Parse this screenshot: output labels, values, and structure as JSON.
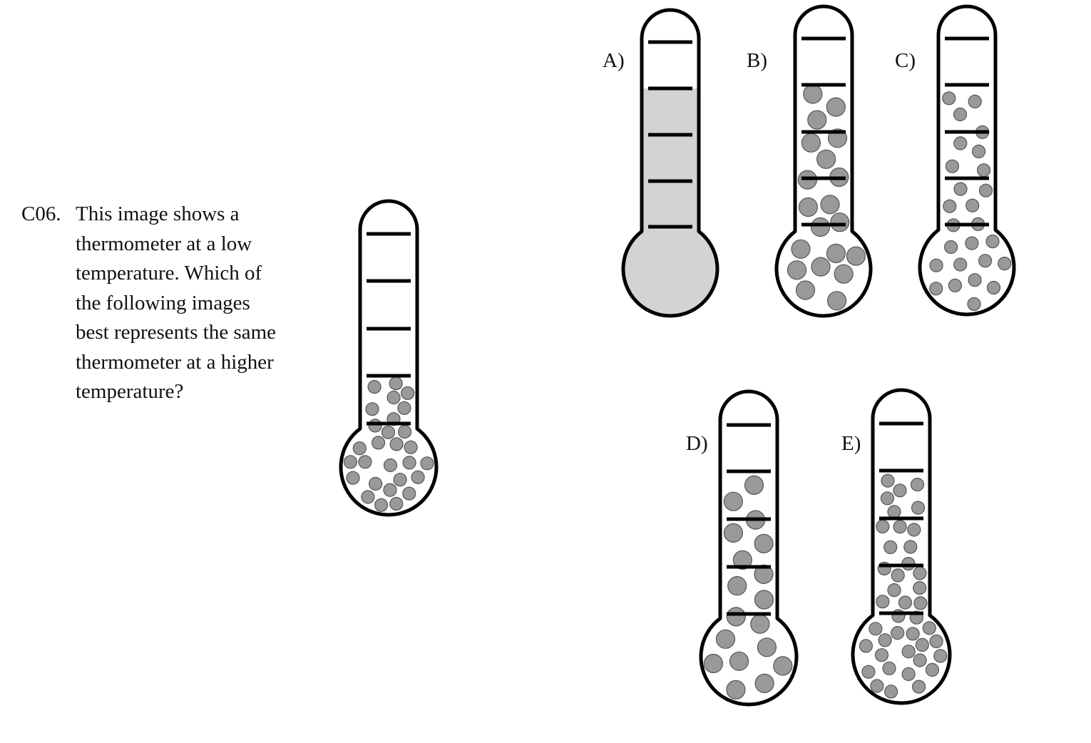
{
  "question": {
    "number": "C06.",
    "lines": [
      "This image shows a",
      "thermometer at a low",
      "temperature. Which of",
      "the following images",
      "best represents the same",
      "thermometer at a higher",
      "temperature?"
    ]
  },
  "colors": {
    "outline": "#000000",
    "particle_fill": "#999999",
    "particle_stroke": "#555555",
    "liquid_fill": "#d3d3d3",
    "glass": "#ffffff"
  },
  "thermometers": [
    {
      "id": "reference",
      "label": "",
      "fill": "particles",
      "particle_size": "small",
      "fill_level": "low"
    },
    {
      "id": "A",
      "label": "A)",
      "fill": "continuous-liquid",
      "particle_size": "",
      "fill_level": "high"
    },
    {
      "id": "B",
      "label": "B)",
      "fill": "particles",
      "particle_size": "large",
      "fill_level": "high"
    },
    {
      "id": "C",
      "label": "C)",
      "fill": "particles",
      "particle_size": "small",
      "fill_level": "high"
    },
    {
      "id": "D",
      "label": "D)",
      "fill": "particles",
      "particle_size": "large",
      "fill_level": "high-sparse"
    },
    {
      "id": "E",
      "label": "E)",
      "fill": "particles",
      "particle_size": "small",
      "fill_level": "high-dense"
    }
  ]
}
